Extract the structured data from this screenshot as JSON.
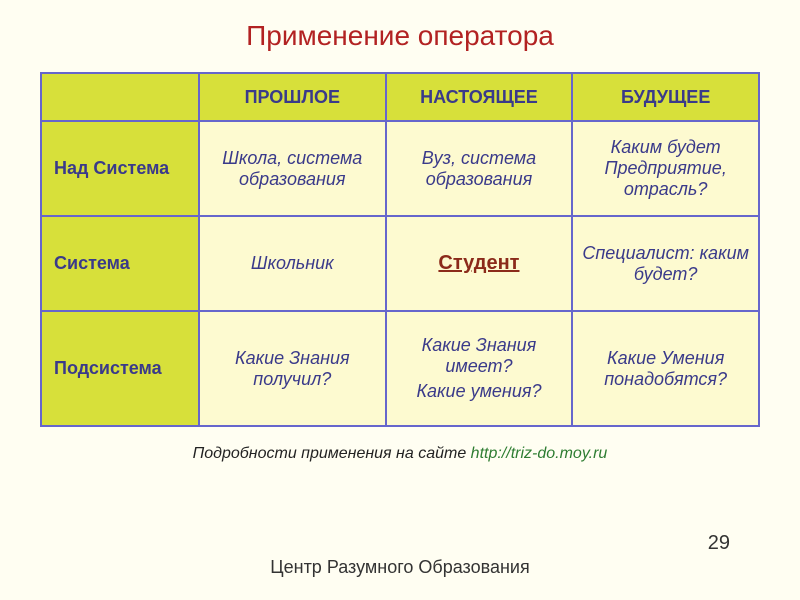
{
  "colors": {
    "slideBg": "#fffef2",
    "titleColor": "#b22222",
    "tableBorder": "#6666cc",
    "headerBg": "#d7e03a",
    "cornerBg": "#d7e03a",
    "rowLabelBg": "#d7e03a",
    "cellBg": "#fdfad0",
    "headerText": "#3a3a8a",
    "rowLabelText": "#3a3a8a",
    "cellText": "#3a3a8a",
    "highlightText": "#8b2a1a",
    "captionText": "#222222",
    "linkColor": "#2e7d32",
    "footerText": "#333333",
    "pageNumColor": "#333333"
  },
  "title": "Применение оператора",
  "table": {
    "columns": [
      "ПРОШЛОЕ",
      "НАСТОЯЩЕЕ",
      "БУДУЩЕЕ"
    ],
    "rows": [
      {
        "label": "Над Система",
        "cells": [
          "Школа, система образования",
          "Вуз, система образования",
          "Каким будет Предприятие, отрасль?"
        ]
      },
      {
        "label": "Система",
        "cells": [
          "Школьник",
          "Студент",
          "Специалист: каким будет?"
        ],
        "highlightIndex": 1
      },
      {
        "label": "Подсистема",
        "cells": [
          "Какие Знания получил?",
          [
            "Какие Знания имеет?",
            "Какие умения?"
          ],
          "Какие Умения понадобятся?"
        ]
      }
    ]
  },
  "caption": {
    "prefix": "Подробности применения на сайте ",
    "linkText": "http://triz-do.moy.ru"
  },
  "footer": "Центр Разумного Образования",
  "pageNumber": "29"
}
